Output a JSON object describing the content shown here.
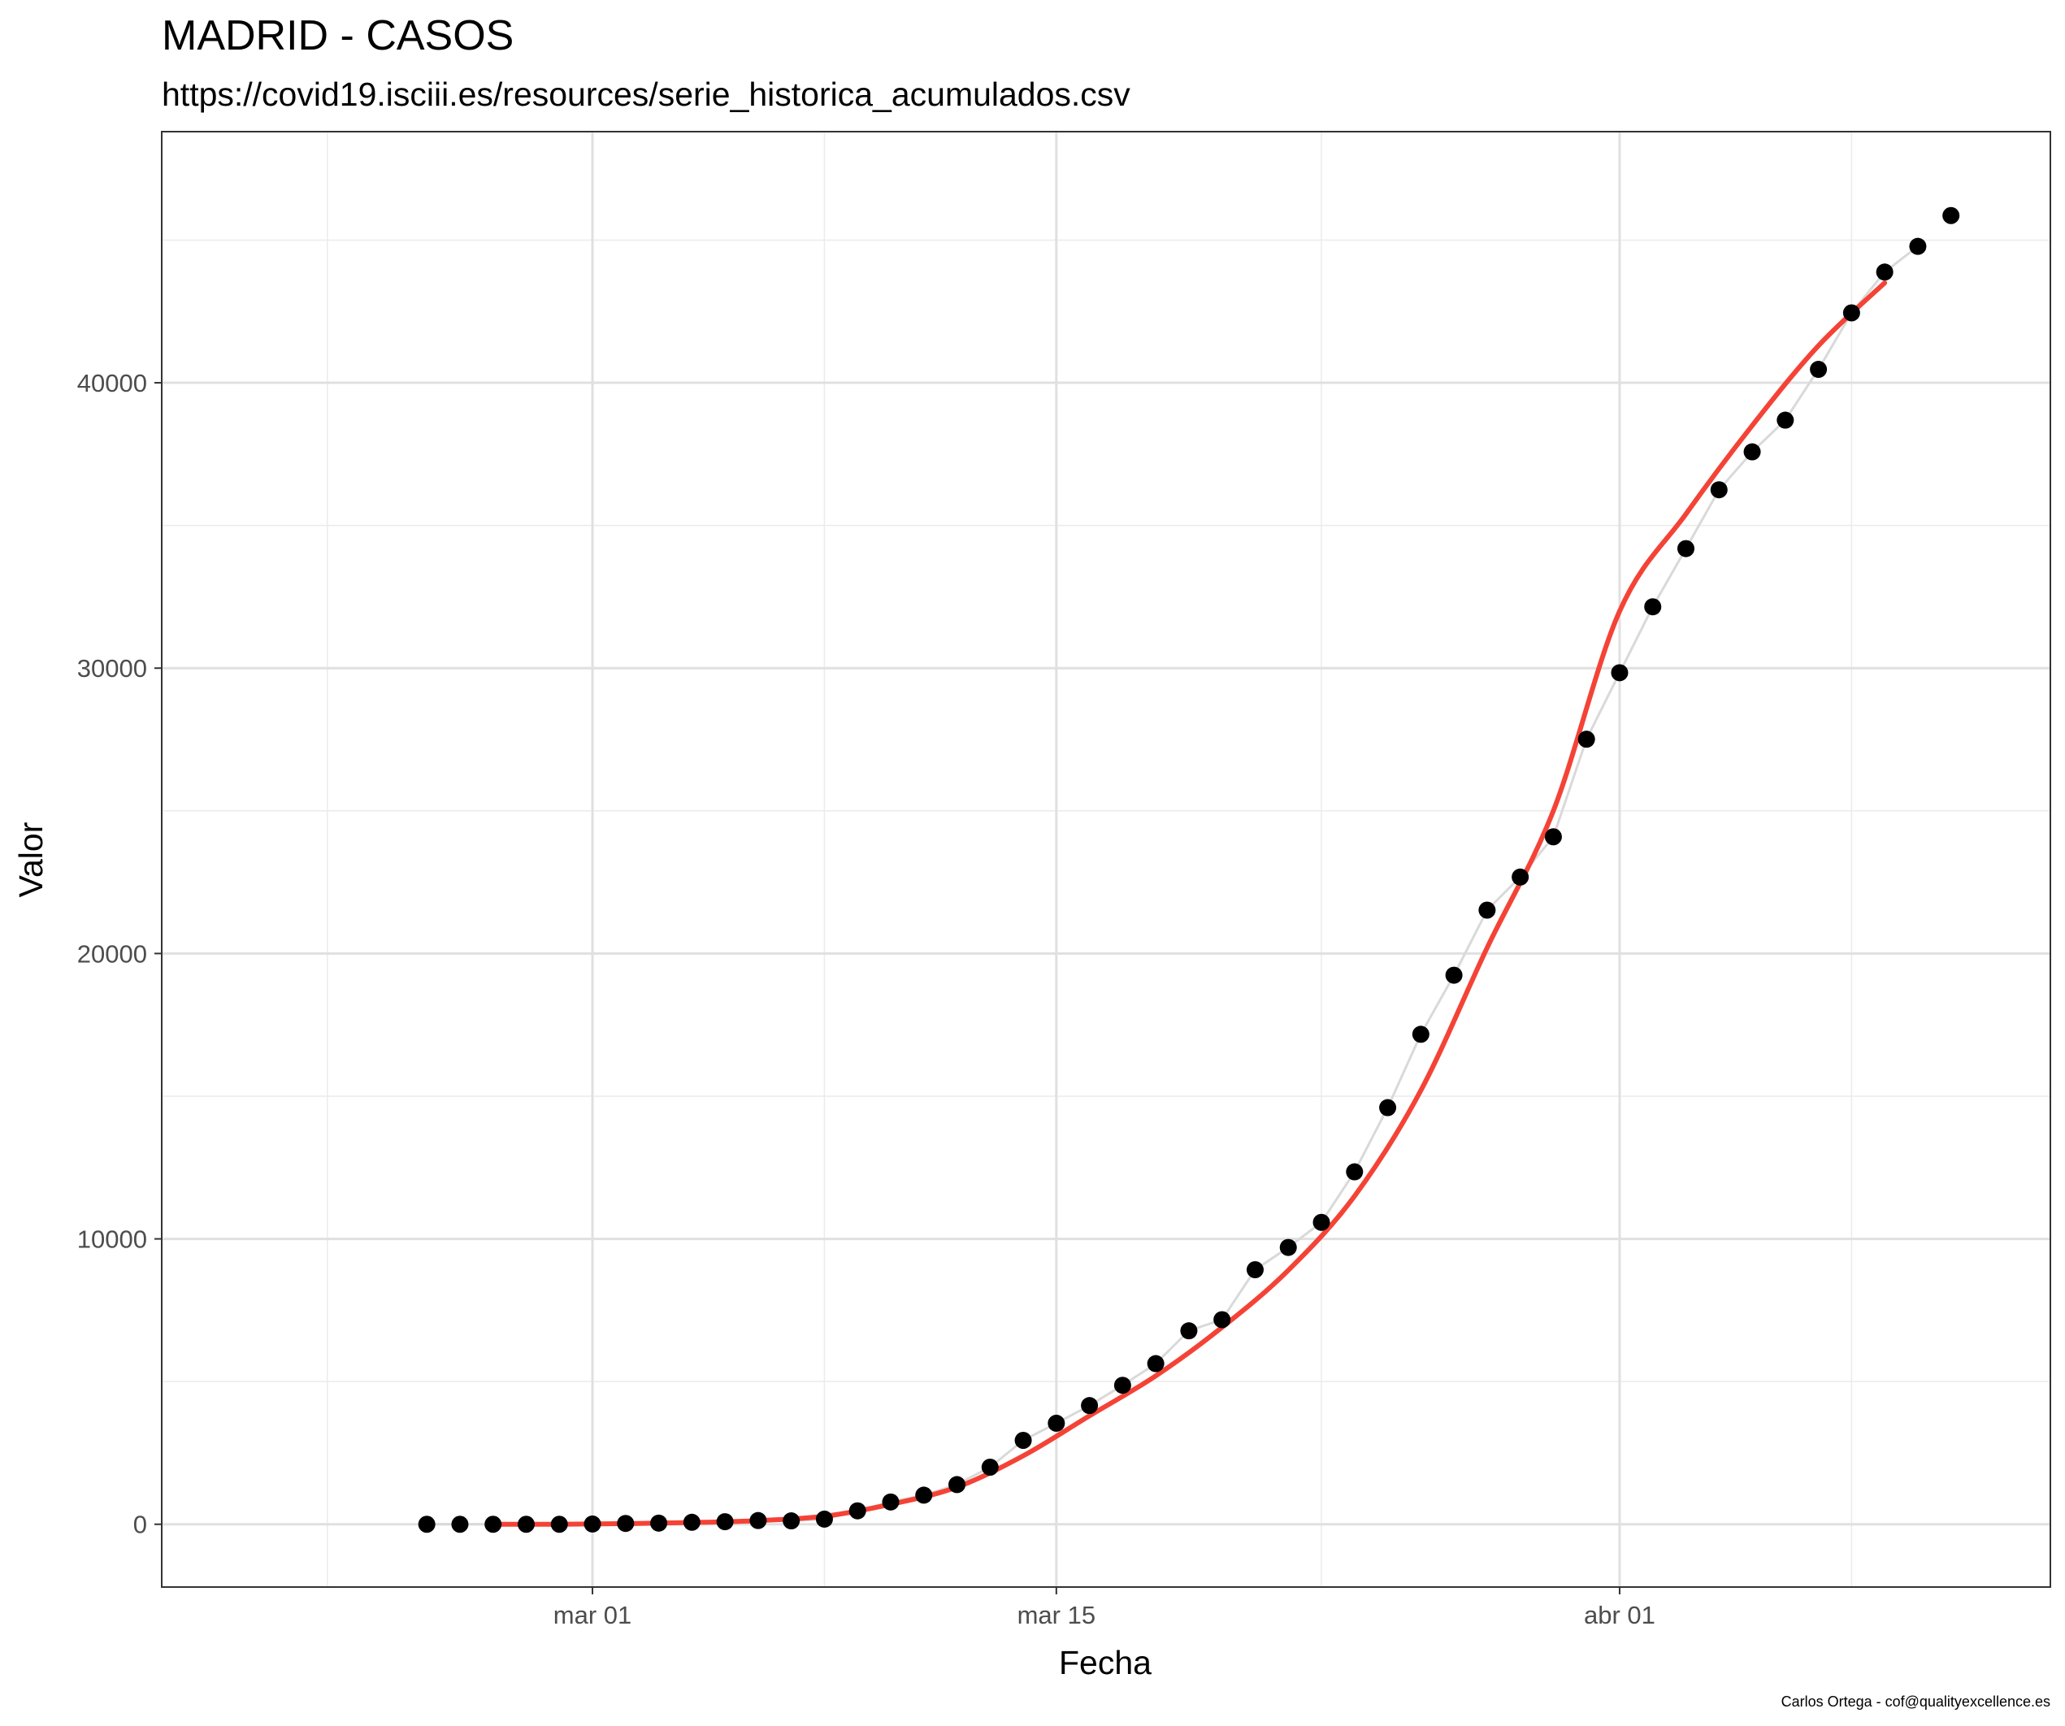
{
  "chart_data": {
    "type": "scatter",
    "title": "MADRID - CASOS",
    "subtitle": "https://covid19.isciii.es/resources/serie_historica_acumulados.csv",
    "xlabel": "Fecha",
    "ylabel": "Valor",
    "caption": "Carlos Ortega - cof@qualityexcellence.es",
    "x_type": "date",
    "xlim": [
      "2020-02-17",
      "2020-04-14"
    ],
    "ylim": [
      -2200,
      48800
    ],
    "x_ticks": [
      {
        "date": "2020-03-01",
        "label": "mar 01"
      },
      {
        "date": "2020-03-15",
        "label": "mar 15"
      },
      {
        "date": "2020-04-01",
        "label": "abr 01"
      }
    ],
    "x_minor_ticks": [
      "2020-02-22",
      "2020-03-08",
      "2020-03-23",
      "2020-04-08"
    ],
    "y_ticks": [
      0,
      10000,
      20000,
      30000,
      40000
    ],
    "y_minor_ticks": [
      5000,
      15000,
      25000,
      35000,
      45000
    ],
    "grid": true,
    "series": [
      {
        "marker": "point",
        "color": "#000000",
        "connector_color": "#d9d9d9",
        "x": [
          "2020-02-25",
          "2020-02-26",
          "2020-02-27",
          "2020-02-28",
          "2020-02-29",
          "2020-03-01",
          "2020-03-02",
          "2020-03-03",
          "2020-03-04",
          "2020-03-05",
          "2020-03-06",
          "2020-03-07",
          "2020-03-08",
          "2020-03-09",
          "2020-03-10",
          "2020-03-11",
          "2020-03-12",
          "2020-03-13",
          "2020-03-14",
          "2020-03-15",
          "2020-03-16",
          "2020-03-17",
          "2020-03-18",
          "2020-03-19",
          "2020-03-20",
          "2020-03-21",
          "2020-03-22",
          "2020-03-23",
          "2020-03-24",
          "2020-03-25",
          "2020-03-26",
          "2020-03-27",
          "2020-03-28",
          "2020-03-29",
          "2020-03-30",
          "2020-03-31",
          "2020-04-01",
          "2020-04-02",
          "2020-04-03",
          "2020-04-04",
          "2020-04-05",
          "2020-04-06",
          "2020-04-07",
          "2020-04-08",
          "2020-04-09",
          "2020-04-10"
        ],
        "values": [
          0,
          0,
          0,
          0,
          0,
          10,
          30,
          40,
          70,
          90,
          130,
          120,
          180,
          470,
          780,
          1020,
          1390,
          2000,
          2940,
          3540,
          4160,
          4870,
          5630,
          6780,
          7170,
          8920,
          9700,
          10580,
          12350,
          14600,
          17170,
          19240,
          21520,
          22680,
          24090,
          27510,
          29840,
          32150,
          34190,
          36250,
          37580,
          38690,
          40470,
          42450,
          43880,
          44780
        ]
      },
      {
        "type": "line",
        "color": "#f44336",
        "x": [
          "2020-02-27",
          "2020-02-29",
          "2020-03-02",
          "2020-03-04",
          "2020-03-06",
          "2020-03-08",
          "2020-03-10",
          "2020-03-12",
          "2020-03-14",
          "2020-03-16",
          "2020-03-18",
          "2020-03-20",
          "2020-03-22",
          "2020-03-24",
          "2020-03-26",
          "2020-03-28",
          "2020-03-30",
          "2020-04-01",
          "2020-04-03",
          "2020-04-05",
          "2020-04-07",
          "2020-04-09"
        ],
        "values": [
          0,
          0,
          20,
          60,
          130,
          280,
          700,
          1300,
          2400,
          3800,
          5200,
          6900,
          8900,
          11500,
          15200,
          20200,
          25000,
          32000,
          35400,
          38500,
          41300,
          43500
        ]
      },
      {
        "marker": "point",
        "color": "#000000",
        "x": [
          "2020-04-11"
        ],
        "values": [
          45860
        ]
      }
    ]
  }
}
